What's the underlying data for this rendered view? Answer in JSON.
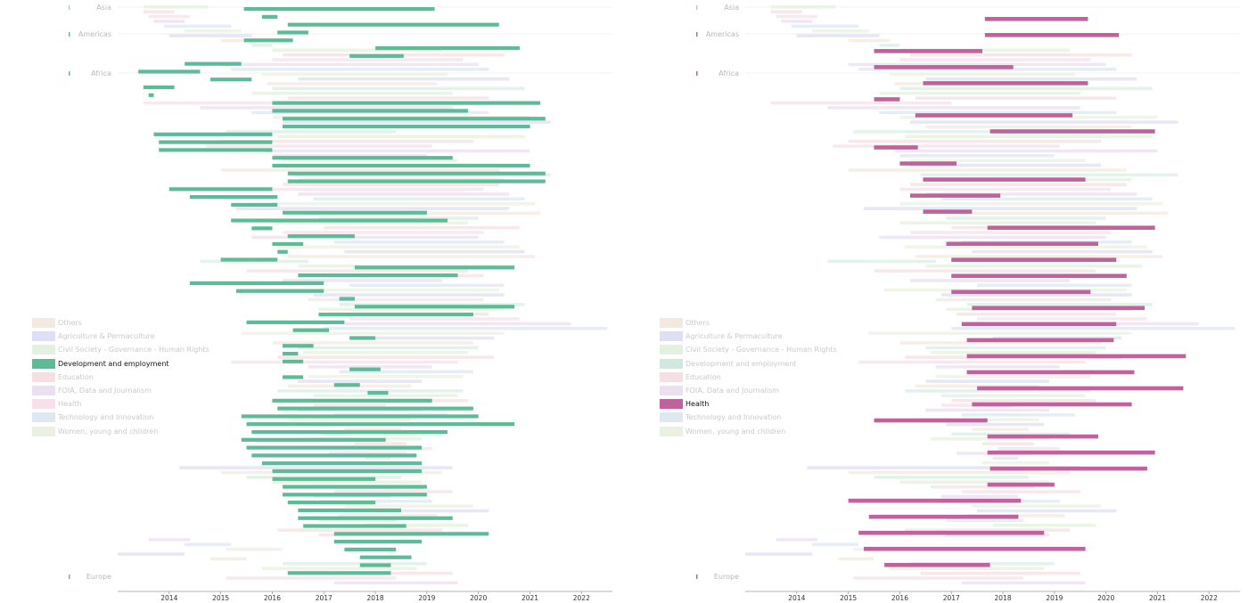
{
  "chart_data": [
    {
      "type": "timeline",
      "highlight": "Development and employment",
      "xlim": [
        2013,
        2022.6
      ],
      "x_ticks": [
        "2014",
        "2015",
        "2016",
        "2017",
        "2018",
        "2019",
        "2020",
        "2021",
        "2022"
      ],
      "regions": [
        "Asia",
        "Americas",
        "Africa",
        "Europe"
      ],
      "legend": [
        "Others",
        "Agriculture & Permaculture",
        "Civil Society - Governance - Human Rights",
        "Development and employment",
        "Education",
        "FOIA, Data and Journalism",
        "Health",
        "Technology and Innovation",
        "Women, young and children"
      ],
      "highlight_color": "#5dbb97",
      "bars_highlight": [
        [
          2015.45,
          2019.15
        ],
        [
          2015.8,
          2016.1
        ],
        [
          2016.3,
          2020.4
        ],
        [
          2016.1,
          2016.7
        ],
        [
          2015.45,
          2016.4
        ],
        [
          2018.0,
          2020.8
        ],
        [
          2017.5,
          2018.55
        ],
        [
          2014.3,
          2015.4
        ],
        [
          2013.4,
          2014.6
        ],
        [
          2014.8,
          2015.6
        ],
        [
          2013.5,
          2014.1
        ],
        [
          2013.6,
          2013.7
        ],
        [
          2016.0,
          2021.2
        ],
        [
          2016.0,
          2019.8
        ],
        [
          2016.2,
          2021.3
        ],
        [
          2016.2,
          2021.0
        ],
        [
          2013.7,
          2016.0
        ],
        [
          2013.8,
          2016.0
        ],
        [
          2013.8,
          2016.0
        ],
        [
          2016.0,
          2019.5
        ],
        [
          2016.0,
          2021.0
        ],
        [
          2016.3,
          2021.3
        ],
        [
          2016.3,
          2021.3
        ],
        [
          2014.0,
          2016.0
        ],
        [
          2014.4,
          2016.1
        ],
        [
          2015.2,
          2016.1
        ],
        [
          2016.2,
          2019.0
        ],
        [
          2015.2,
          2019.4
        ],
        [
          2015.6,
          2016.0
        ],
        [
          2016.3,
          2017.6
        ],
        [
          2016.0,
          2016.6
        ],
        [
          2016.1,
          2016.3
        ],
        [
          2015.0,
          2016.1
        ],
        [
          2017.6,
          2020.7
        ],
        [
          2016.5,
          2019.6
        ],
        [
          2014.4,
          2017.0
        ],
        [
          2015.3,
          2017.0
        ],
        [
          2017.3,
          2017.6
        ],
        [
          2017.6,
          2020.7
        ],
        [
          2016.9,
          2019.9
        ],
        [
          2015.5,
          2017.4
        ],
        [
          2016.4,
          2017.1
        ],
        [
          2017.5,
          2018.0
        ],
        [
          2016.2,
          2016.8
        ],
        [
          2016.2,
          2016.5
        ],
        [
          2016.2,
          2016.6
        ],
        [
          2017.5,
          2018.1
        ],
        [
          2016.2,
          2016.6
        ],
        [
          2017.2,
          2017.7
        ],
        [
          2017.85,
          2018.25
        ],
        [
          2016.0,
          2019.1
        ],
        [
          2016.1,
          2019.9
        ],
        [
          2015.4,
          2020.0
        ],
        [
          2015.5,
          2020.7
        ],
        [
          2015.6,
          2019.4
        ],
        [
          2015.4,
          2018.2
        ],
        [
          2015.5,
          2018.9
        ],
        [
          2015.6,
          2018.8
        ],
        [
          2015.8,
          2018.9
        ],
        [
          2016.0,
          2018.9
        ],
        [
          2016.0,
          2018.0
        ],
        [
          2016.2,
          2019.0
        ],
        [
          2016.2,
          2019.0
        ],
        [
          2016.3,
          2018.0
        ],
        [
          2016.5,
          2018.5
        ],
        [
          2016.5,
          2019.5
        ],
        [
          2016.6,
          2018.6
        ],
        [
          2017.2,
          2020.2
        ],
        [
          2017.2,
          2018.9
        ],
        [
          2017.4,
          2018.4
        ],
        [
          2017.7,
          2018.7
        ],
        [
          2017.7,
          2018.3
        ],
        [
          2016.3,
          2018.3
        ]
      ],
      "bars_background": [
        [
          2013.5,
          2014.75
        ],
        [
          2013.5,
          2014.1
        ],
        [
          2013.6,
          2014.4
        ],
        [
          2013.7,
          2014.3
        ],
        [
          2013.9,
          2015.2
        ],
        [
          2014.3,
          2015.4
        ],
        [
          2014.0,
          2015.6
        ],
        [
          2015.0,
          2015.8
        ],
        [
          2015.6,
          2016.0
        ],
        [
          2016.0,
          2019.3
        ],
        [
          2016.2,
          2020.5
        ],
        [
          2016.0,
          2019.7
        ],
        [
          2015.0,
          2020.0
        ],
        [
          2015.2,
          2020.2
        ],
        [
          2015.8,
          2019.4
        ],
        [
          2016.5,
          2020.6
        ],
        [
          2015.9,
          2019.2
        ],
        [
          2016.0,
          2020.9
        ],
        [
          2015.6,
          2019.5
        ],
        [
          2016.3,
          2020.2
        ],
        [
          2013.5,
          2017.0
        ],
        [
          2014.6,
          2019.5
        ],
        [
          2015.6,
          2020.2
        ],
        [
          2016.0,
          2021.0
        ],
        [
          2016.2,
          2021.4
        ],
        [
          2016.5,
          2020.5
        ],
        [
          2015.1,
          2018.4
        ],
        [
          2016.1,
          2020.9
        ],
        [
          2015.0,
          2019.9
        ],
        [
          2014.7,
          2019.1
        ],
        [
          2015.9,
          2021.0
        ],
        [
          2016.0,
          2019.0
        ],
        [
          2016.2,
          2019.6
        ],
        [
          2016.2,
          2019.9
        ],
        [
          2015.0,
          2020.4
        ],
        [
          2016.4,
          2021.4
        ],
        [
          2016.5,
          2020.5
        ],
        [
          2016.2,
          2020.4
        ],
        [
          2016.0,
          2020.1
        ],
        [
          2016.5,
          2020.6
        ],
        [
          2016.8,
          2020.9
        ],
        [
          2016.0,
          2021.1
        ],
        [
          2015.3,
          2020.6
        ],
        [
          2016.7,
          2021.2
        ],
        [
          2016.9,
          2020.0
        ],
        [
          2016.0,
          2019.8
        ],
        [
          2017.0,
          2020.8
        ],
        [
          2016.2,
          2020.1
        ],
        [
          2015.6,
          2020.0
        ],
        [
          2017.2,
          2020.5
        ],
        [
          2016.1,
          2020.8
        ],
        [
          2017.4,
          2020.9
        ],
        [
          2016.3,
          2021.1
        ],
        [
          2014.6,
          2016.7
        ],
        [
          2016.5,
          2020.7
        ],
        [
          2015.5,
          2019.8
        ],
        [
          2017.1,
          2020.1
        ],
        [
          2016.2,
          2019.3
        ],
        [
          2017.5,
          2020.5
        ],
        [
          2015.7,
          2020.4
        ],
        [
          2016.8,
          2020.5
        ],
        [
          2016.7,
          2020.1
        ],
        [
          2017.3,
          2020.9
        ],
        [
          2016.9,
          2020.5
        ],
        [
          2017.1,
          2020.2
        ],
        [
          2017.5,
          2020.8
        ],
        [
          2017.4,
          2021.8
        ],
        [
          2017.0,
          2022.5
        ],
        [
          2015.4,
          2020.5
        ],
        [
          2017.8,
          2020.3
        ],
        [
          2016.0,
          2019.9
        ],
        [
          2016.5,
          2020.0
        ],
        [
          2016.6,
          2019.8
        ],
        [
          2016.1,
          2020.3
        ],
        [
          2015.2,
          2019.6
        ],
        [
          2016.7,
          2019.1
        ],
        [
          2017.3,
          2019.9
        ],
        [
          2016.7,
          2019.7
        ],
        [
          2016.5,
          2018.9
        ],
        [
          2016.3,
          2018.7
        ],
        [
          2016.1,
          2019.7
        ],
        [
          2016.8,
          2019.6
        ],
        [
          2017.0,
          2019.8
        ],
        [
          2016.8,
          2018.2
        ],
        [
          2016.5,
          2018.9
        ],
        [
          2017.2,
          2019.4
        ],
        [
          2016.3,
          2018.7
        ],
        [
          2016.9,
          2018.8
        ],
        [
          2017.4,
          2018.5
        ],
        [
          2017.0,
          2019.3
        ],
        [
          2016.6,
          2018.9
        ],
        [
          2017.6,
          2018.6
        ],
        [
          2017.9,
          2019.1
        ],
        [
          2017.1,
          2018.6
        ],
        [
          2017.8,
          2018.3
        ],
        [
          2017.6,
          2018.9
        ],
        [
          2014.2,
          2019.5
        ],
        [
          2015.0,
          2019.3
        ],
        [
          2015.5,
          2018.5
        ],
        [
          2016.0,
          2018.9
        ],
        [
          2016.6,
          2018.6
        ],
        [
          2017.2,
          2019.5
        ],
        [
          2016.8,
          2018.3
        ],
        [
          2016.9,
          2019.1
        ],
        [
          2017.4,
          2019.9
        ],
        [
          2017.5,
          2020.2
        ],
        [
          2017.3,
          2019.2
        ],
        [
          2016.9,
          2018.4
        ],
        [
          2017.8,
          2019.8
        ],
        [
          2016.1,
          2019.3
        ],
        [
          2016.9,
          2018.9
        ],
        [
          2013.6,
          2014.4
        ],
        [
          2014.3,
          2015.2
        ],
        [
          2015.1,
          2016.2
        ],
        [
          2013.0,
          2014.3
        ],
        [
          2014.8,
          2015.5
        ],
        [
          2016.2,
          2019.0
        ],
        [
          2015.8,
          2018.8
        ],
        [
          2016.4,
          2019.5
        ],
        [
          2015.1,
          2018.4
        ],
        [
          2017.2,
          2019.6
        ]
      ]
    },
    {
      "type": "timeline",
      "highlight": "Health",
      "xlim": [
        2013,
        2022.6
      ],
      "x_ticks": [
        "2014",
        "2015",
        "2016",
        "2017",
        "2018",
        "2019",
        "2020",
        "2021",
        "2022"
      ],
      "regions": [
        "Asia",
        "Americas",
        "Africa",
        "Europe"
      ],
      "legend": [
        "Others",
        "Agriculture & Permaculture",
        "Civil Society - Governance - Human Rights",
        "Development and employment",
        "Education",
        "FOIA, Data and Journalism",
        "Health",
        "Technology and Innovation",
        "Women, young and children"
      ],
      "highlight_color": "#c0629d",
      "bars_highlight": [
        [
          2017.65,
          2019.65
        ],
        [
          2017.65,
          2020.25
        ],
        [
          2015.5,
          2017.6
        ],
        [
          2015.5,
          2018.2
        ],
        [
          2016.45,
          2019.65
        ],
        [
          2015.5,
          2016.0
        ],
        [
          2016.3,
          2019.35
        ],
        [
          2017.75,
          2020.95
        ],
        [
          2015.5,
          2016.35
        ],
        [
          2016.0,
          2017.1
        ],
        [
          2016.45,
          2019.6
        ],
        [
          2016.2,
          2017.95
        ],
        [
          2016.45,
          2017.4
        ],
        [
          2017.7,
          2020.95
        ],
        [
          2016.9,
          2019.85
        ],
        [
          2017.0,
          2020.2
        ],
        [
          2017.0,
          2020.4
        ],
        [
          2017.0,
          2019.7
        ],
        [
          2017.4,
          2020.75
        ],
        [
          2017.2,
          2020.2
        ],
        [
          2017.3,
          2020.15
        ],
        [
          2017.3,
          2021.55
        ],
        [
          2017.3,
          2020.55
        ],
        [
          2017.5,
          2021.5
        ],
        [
          2017.4,
          2020.5
        ],
        [
          2015.5,
          2017.7
        ],
        [
          2017.7,
          2019.85
        ],
        [
          2017.7,
          2020.95
        ],
        [
          2017.75,
          2020.8
        ],
        [
          2017.7,
          2019.0
        ],
        [
          2015.0,
          2018.35
        ],
        [
          2015.4,
          2018.3
        ],
        [
          2015.2,
          2018.8
        ],
        [
          2015.3,
          2019.6
        ],
        [
          2015.7,
          2017.75
        ]
      ],
      "bars_background": []
    }
  ]
}
